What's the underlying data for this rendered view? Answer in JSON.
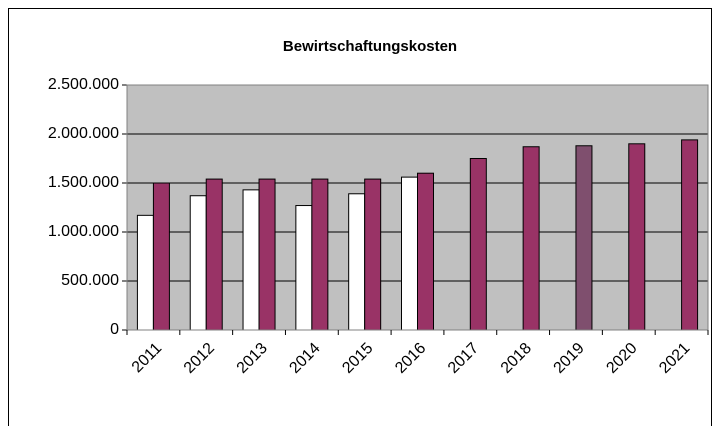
{
  "chart_data": {
    "type": "bar",
    "title": "Bewirtschaftungskosten",
    "categories": [
      "2011",
      "2012",
      "2013",
      "2014",
      "2015",
      "2016",
      "2017",
      "2018",
      "2019",
      "2020",
      "2021"
    ],
    "series": [
      {
        "color": "#ffffff",
        "values": [
          1170000,
          1370000,
          1430000,
          1270000,
          1390000,
          1560000,
          null,
          null,
          null,
          null,
          null
        ]
      },
      {
        "color": "#993366",
        "colors": [
          "#993366",
          "#993366",
          "#993366",
          "#993366",
          "#993366",
          "#993366",
          "#993366",
          "#993366",
          "#7f4f6e",
          "#993366",
          "#993366"
        ],
        "values": [
          1500000,
          1540000,
          1540000,
          1540000,
          1540000,
          1600000,
          1750000,
          1870000,
          1880000,
          1900000,
          1940000
        ]
      }
    ],
    "ylim": [
      0,
      2500000
    ],
    "yticks": [
      0,
      {
        "value": 500000,
        "label": "500.000"
      },
      {
        "value": 1000000,
        "label": "1.000.000"
      },
      {
        "value": 1500000,
        "label": "1.500.000"
      },
      {
        "value": 2000000,
        "label": "2.000.000"
      },
      {
        "value": 2500000,
        "label": "2.500.000"
      }
    ],
    "grid": true,
    "plot_background": "#c0c0c0"
  }
}
